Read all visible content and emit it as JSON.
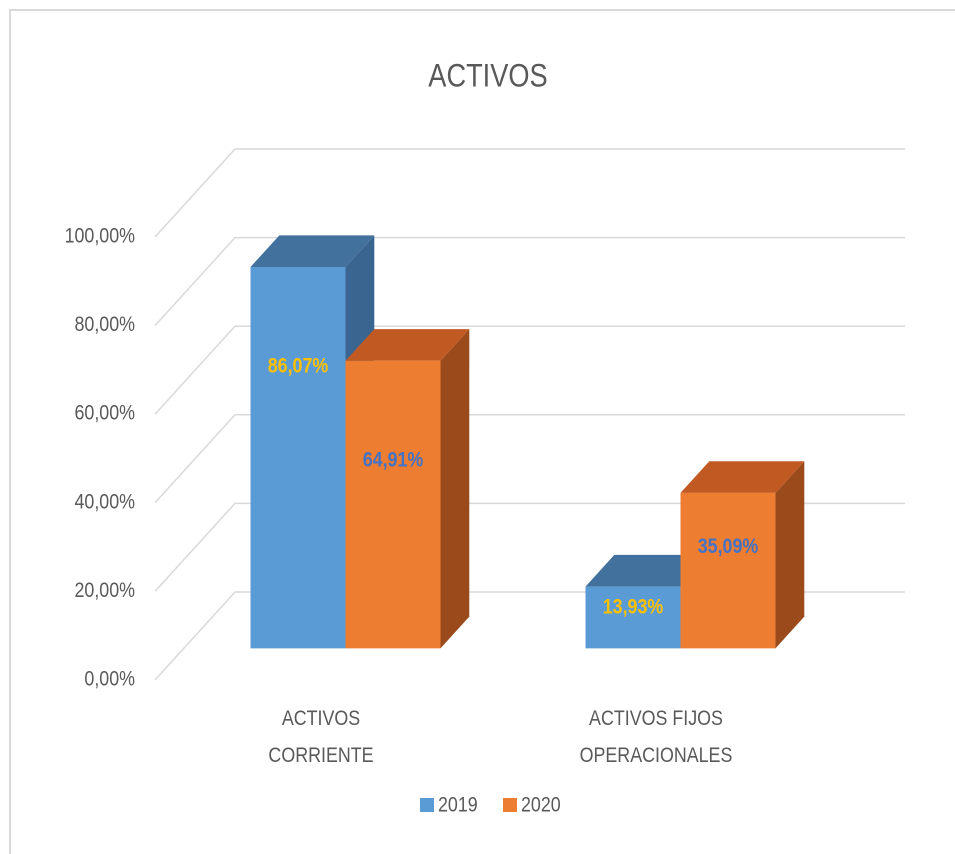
{
  "chart_data": {
    "type": "bar3d",
    "title": "ACTIVOS",
    "categories": [
      "ACTIVOS CORRIENTE",
      "ACTIVOS FIJOS OPERACIONALES"
    ],
    "series": [
      {
        "name": "2019",
        "color": "#5b9bd5",
        "top_color": "#41719c",
        "side_color": "#3a6591",
        "label_color": "#ffc000",
        "values": [
          86.07,
          13.93
        ],
        "value_labels": [
          "86,07%",
          "13,93%"
        ]
      },
      {
        "name": "2020",
        "color": "#ed7d31",
        "top_color": "#c05a22",
        "side_color": "#9a4a1b",
        "label_color": "#4472c4",
        "values": [
          64.91,
          35.09
        ],
        "value_labels": [
          "64,91%",
          "35,09%"
        ]
      }
    ],
    "ylim": [
      0,
      100
    ],
    "yticks": [
      {
        "value": 0,
        "label": "0,00%"
      },
      {
        "value": 20,
        "label": "20,00%"
      },
      {
        "value": 40,
        "label": "40,00%"
      },
      {
        "value": 60,
        "label": "60,00%"
      },
      {
        "value": 80,
        "label": "80,00%"
      },
      {
        "value": 100,
        "label": "100,00%"
      }
    ],
    "grid": true,
    "legend": "bottom"
  }
}
